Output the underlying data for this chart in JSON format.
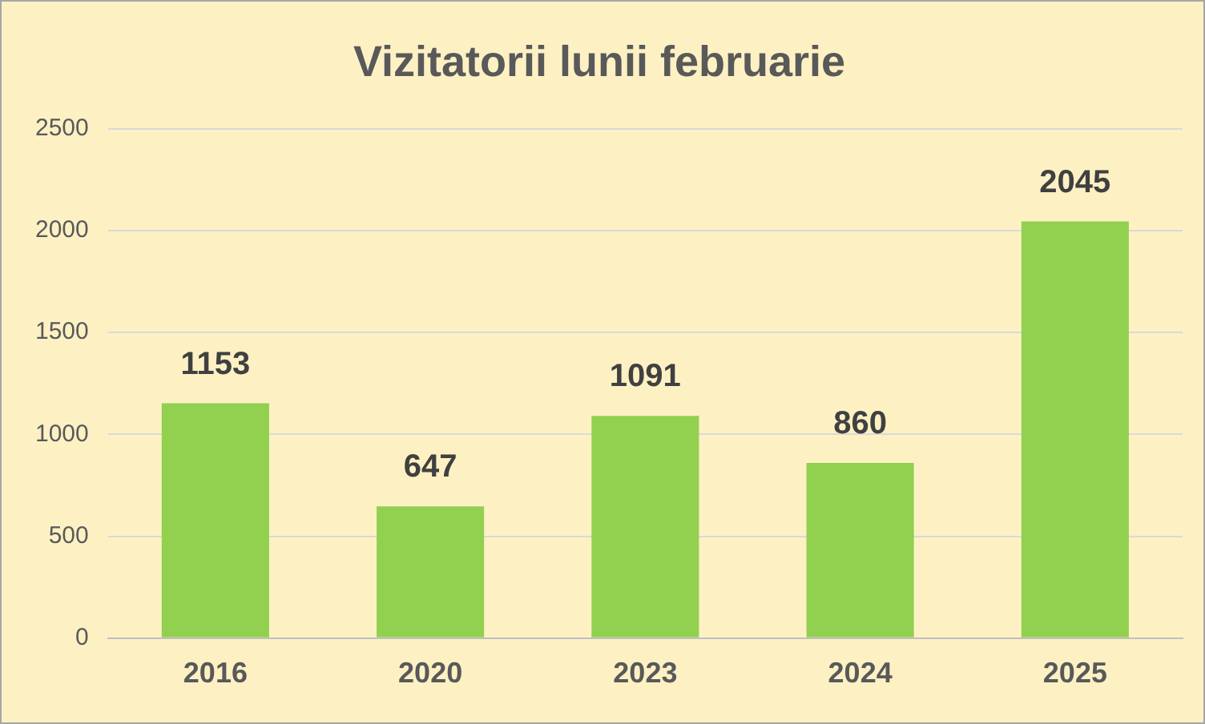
{
  "chart_data": {
    "type": "bar",
    "title": "Vizitatorii lunii februarie",
    "categories": [
      "2016",
      "2020",
      "2023",
      "2024",
      "2025"
    ],
    "values": [
      1153,
      647,
      1091,
      860,
      2045
    ],
    "color": "#92d050",
    "ylim": [
      0,
      2500
    ],
    "yticks": [
      0,
      500,
      1000,
      1500,
      2000,
      2500
    ],
    "grid": "y",
    "data_labels": true,
    "legend": false
  }
}
